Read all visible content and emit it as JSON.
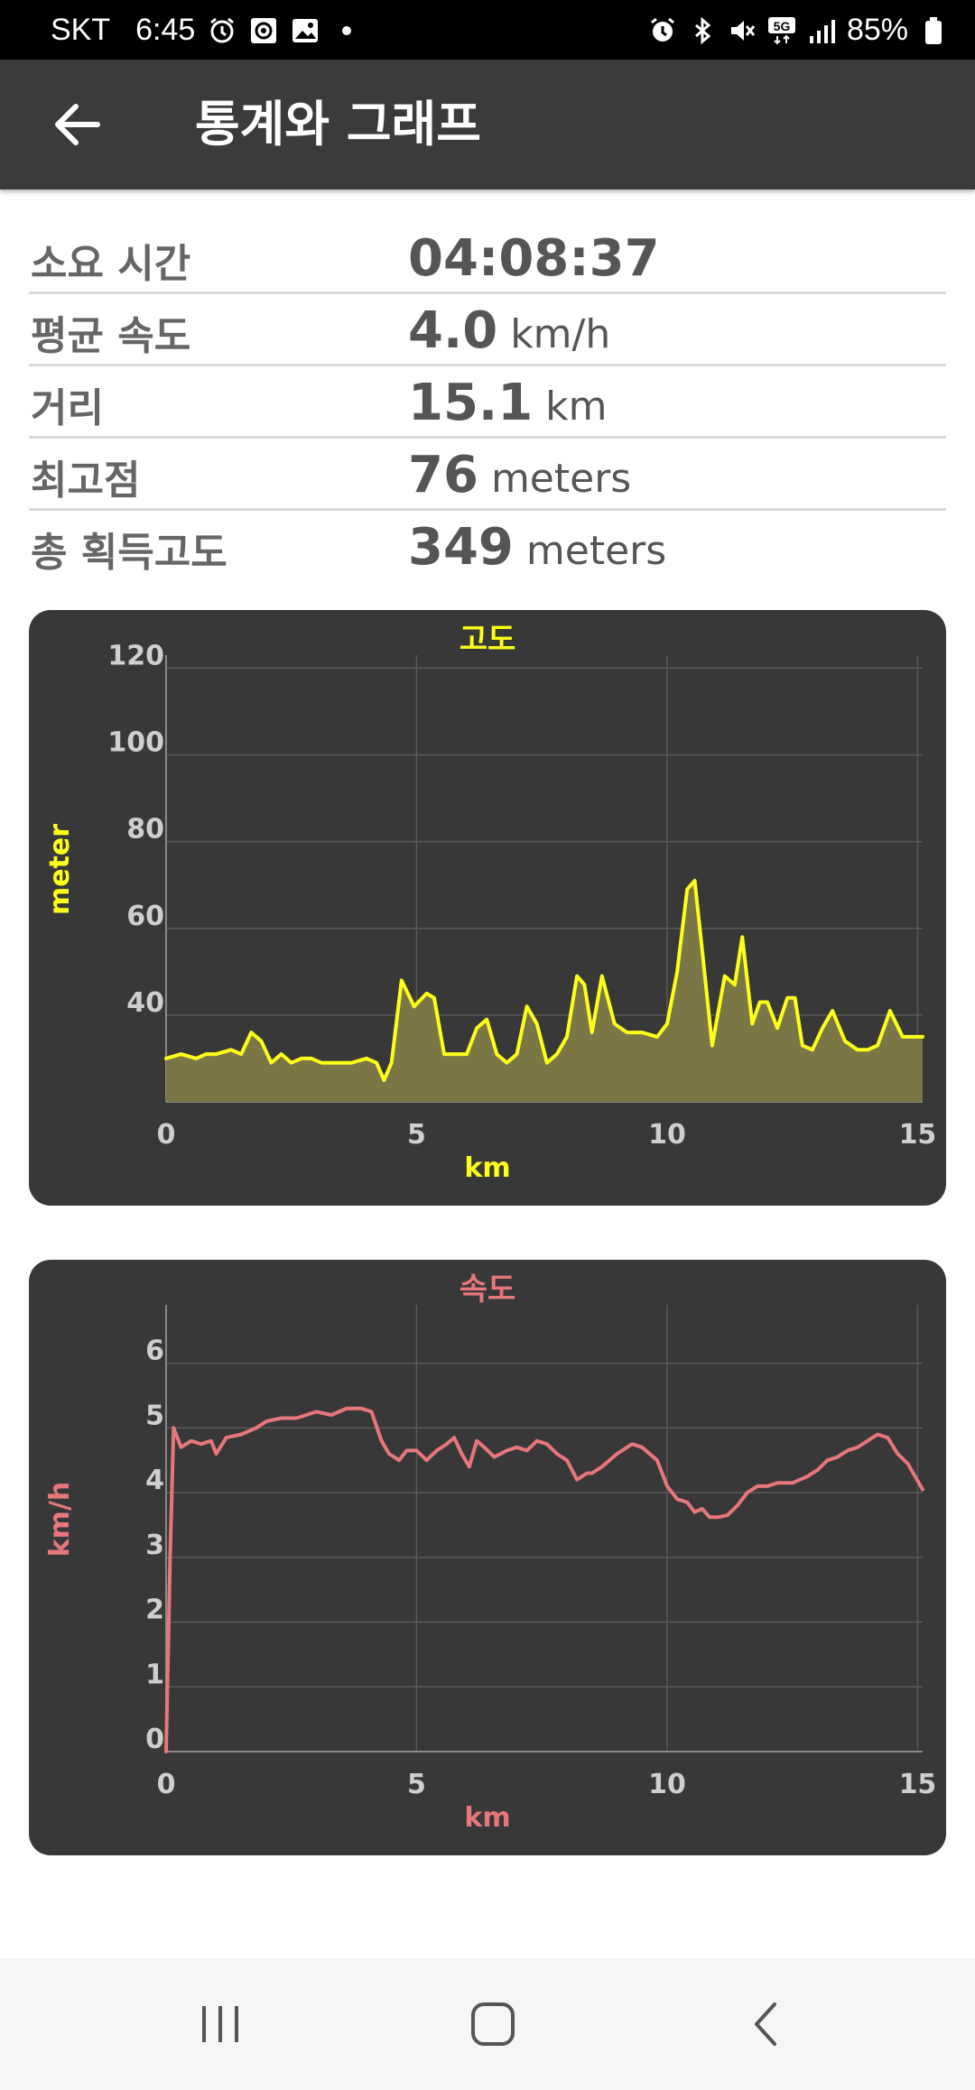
{
  "status_bar": {
    "carrier": "SKT",
    "time": "6:45",
    "battery": "85%",
    "left_icons": [
      "alarm-icon",
      "app-icon",
      "gallery-icon",
      "dot-icon"
    ],
    "right_icons": [
      "alarm-icon",
      "bluetooth-icon",
      "mute-icon",
      "5g-icon",
      "signal-icon",
      "battery-icon"
    ]
  },
  "app_bar": {
    "title": "통계와 그래프",
    "back_icon": "arrow-left-icon"
  },
  "stats": [
    {
      "label": "소요 시간",
      "value": "04:08:37",
      "unit": ""
    },
    {
      "label": "평균 속도",
      "value": "4.0",
      "unit": "km/h"
    },
    {
      "label": "거리",
      "value": "15.1",
      "unit": "km"
    },
    {
      "label": "최고점",
      "value": "76",
      "unit": "meters"
    },
    {
      "label": "총 획득고도",
      "value": "349",
      "unit": "meters"
    }
  ],
  "chart_data": [
    {
      "type": "area",
      "title": "고도",
      "xlabel": "km",
      "ylabel": "meter",
      "xlim": [
        0,
        15.1
      ],
      "ylim": [
        20,
        123
      ],
      "xticks": [
        "0",
        "5",
        "10",
        "15"
      ],
      "xtick_values": [
        0,
        5,
        10,
        15
      ],
      "yticks": [
        "40",
        "60",
        "80",
        "100",
        "120"
      ],
      "ytick_values": [
        40,
        60,
        80,
        100,
        120
      ],
      "grid": true,
      "color": "#ffff1a",
      "fill": "#7b7646",
      "x": [
        0,
        0.3,
        0.6,
        0.8,
        1.0,
        1.3,
        1.5,
        1.7,
        1.9,
        2.1,
        2.3,
        2.5,
        2.7,
        2.9,
        3.1,
        3.4,
        3.7,
        4.0,
        4.2,
        4.35,
        4.5,
        4.7,
        4.95,
        5.2,
        5.35,
        5.55,
        5.7,
        6.0,
        6.2,
        6.4,
        6.6,
        6.8,
        7.0,
        7.2,
        7.4,
        7.6,
        7.8,
        8.0,
        8.2,
        8.35,
        8.5,
        8.7,
        8.95,
        9.2,
        9.5,
        9.8,
        10.0,
        10.2,
        10.4,
        10.55,
        10.7,
        10.9,
        11.15,
        11.35,
        11.5,
        11.7,
        11.85,
        12.0,
        12.2,
        12.4,
        12.55,
        12.7,
        12.9,
        13.1,
        13.3,
        13.55,
        13.8,
        14.0,
        14.2,
        14.45,
        14.7,
        14.85,
        15.1
      ],
      "values": [
        30,
        31,
        30,
        31,
        31,
        32,
        31,
        36,
        34,
        29,
        31,
        29,
        30,
        30,
        29,
        29,
        29,
        30,
        29,
        25,
        29,
        48,
        42,
        45,
        44,
        31,
        31,
        31,
        37,
        39,
        31,
        29,
        31,
        42,
        38,
        29,
        31,
        35,
        49,
        47,
        36,
        49,
        38,
        36,
        36,
        35,
        38,
        50,
        69,
        71,
        55,
        33,
        49,
        47,
        58,
        38,
        43,
        43,
        37,
        44,
        44,
        33,
        32,
        37,
        41,
        34,
        32,
        32,
        33,
        41,
        35,
        35,
        35
      ]
    },
    {
      "type": "line",
      "title": "속도",
      "xlabel": "km",
      "ylabel": "km/h",
      "xlim": [
        0,
        15.1
      ],
      "ylim": [
        0,
        6.9
      ],
      "xticks": [
        "0",
        "5",
        "10",
        "15"
      ],
      "xtick_values": [
        0,
        5,
        10,
        15
      ],
      "yticks": [
        "0",
        "1",
        "2",
        "3",
        "4",
        "5",
        "6"
      ],
      "ytick_values": [
        0,
        1,
        2,
        3,
        4,
        5,
        6
      ],
      "grid": true,
      "color": "#e8777b",
      "x": [
        0,
        0.08,
        0.15,
        0.3,
        0.5,
        0.7,
        0.9,
        1.0,
        1.2,
        1.5,
        1.8,
        2.0,
        2.3,
        2.6,
        2.8,
        3.0,
        3.3,
        3.6,
        3.9,
        4.1,
        4.3,
        4.45,
        4.65,
        4.8,
        5.0,
        5.2,
        5.4,
        5.6,
        5.75,
        5.9,
        6.05,
        6.2,
        6.35,
        6.55,
        6.8,
        7.0,
        7.2,
        7.4,
        7.6,
        7.8,
        8.0,
        8.2,
        8.4,
        8.5,
        8.7,
        9.0,
        9.3,
        9.5,
        9.8,
        10.0,
        10.2,
        10.4,
        10.55,
        10.7,
        10.85,
        11.0,
        11.2,
        11.4,
        11.6,
        11.8,
        12.0,
        12.2,
        12.5,
        12.8,
        13.0,
        13.2,
        13.4,
        13.6,
        13.8,
        14.0,
        14.2,
        14.4,
        14.6,
        14.8,
        15.1
      ],
      "values": [
        0,
        3.0,
        5.0,
        4.7,
        4.8,
        4.75,
        4.8,
        4.6,
        4.85,
        4.9,
        5.0,
        5.1,
        5.15,
        5.15,
        5.2,
        5.25,
        5.2,
        5.3,
        5.3,
        5.25,
        4.8,
        4.6,
        4.5,
        4.65,
        4.65,
        4.5,
        4.65,
        4.75,
        4.85,
        4.6,
        4.4,
        4.8,
        4.7,
        4.55,
        4.65,
        4.7,
        4.65,
        4.8,
        4.75,
        4.6,
        4.5,
        4.2,
        4.3,
        4.3,
        4.4,
        4.6,
        4.75,
        4.7,
        4.5,
        4.1,
        3.9,
        3.85,
        3.7,
        3.75,
        3.62,
        3.62,
        3.65,
        3.8,
        4.0,
        4.1,
        4.1,
        4.15,
        4.15,
        4.25,
        4.35,
        4.5,
        4.55,
        4.65,
        4.7,
        4.8,
        4.9,
        4.85,
        4.6,
        4.45,
        4.05
      ]
    }
  ],
  "nav_bar": {
    "icons": [
      "recent-apps-icon",
      "home-icon",
      "back-icon"
    ]
  }
}
